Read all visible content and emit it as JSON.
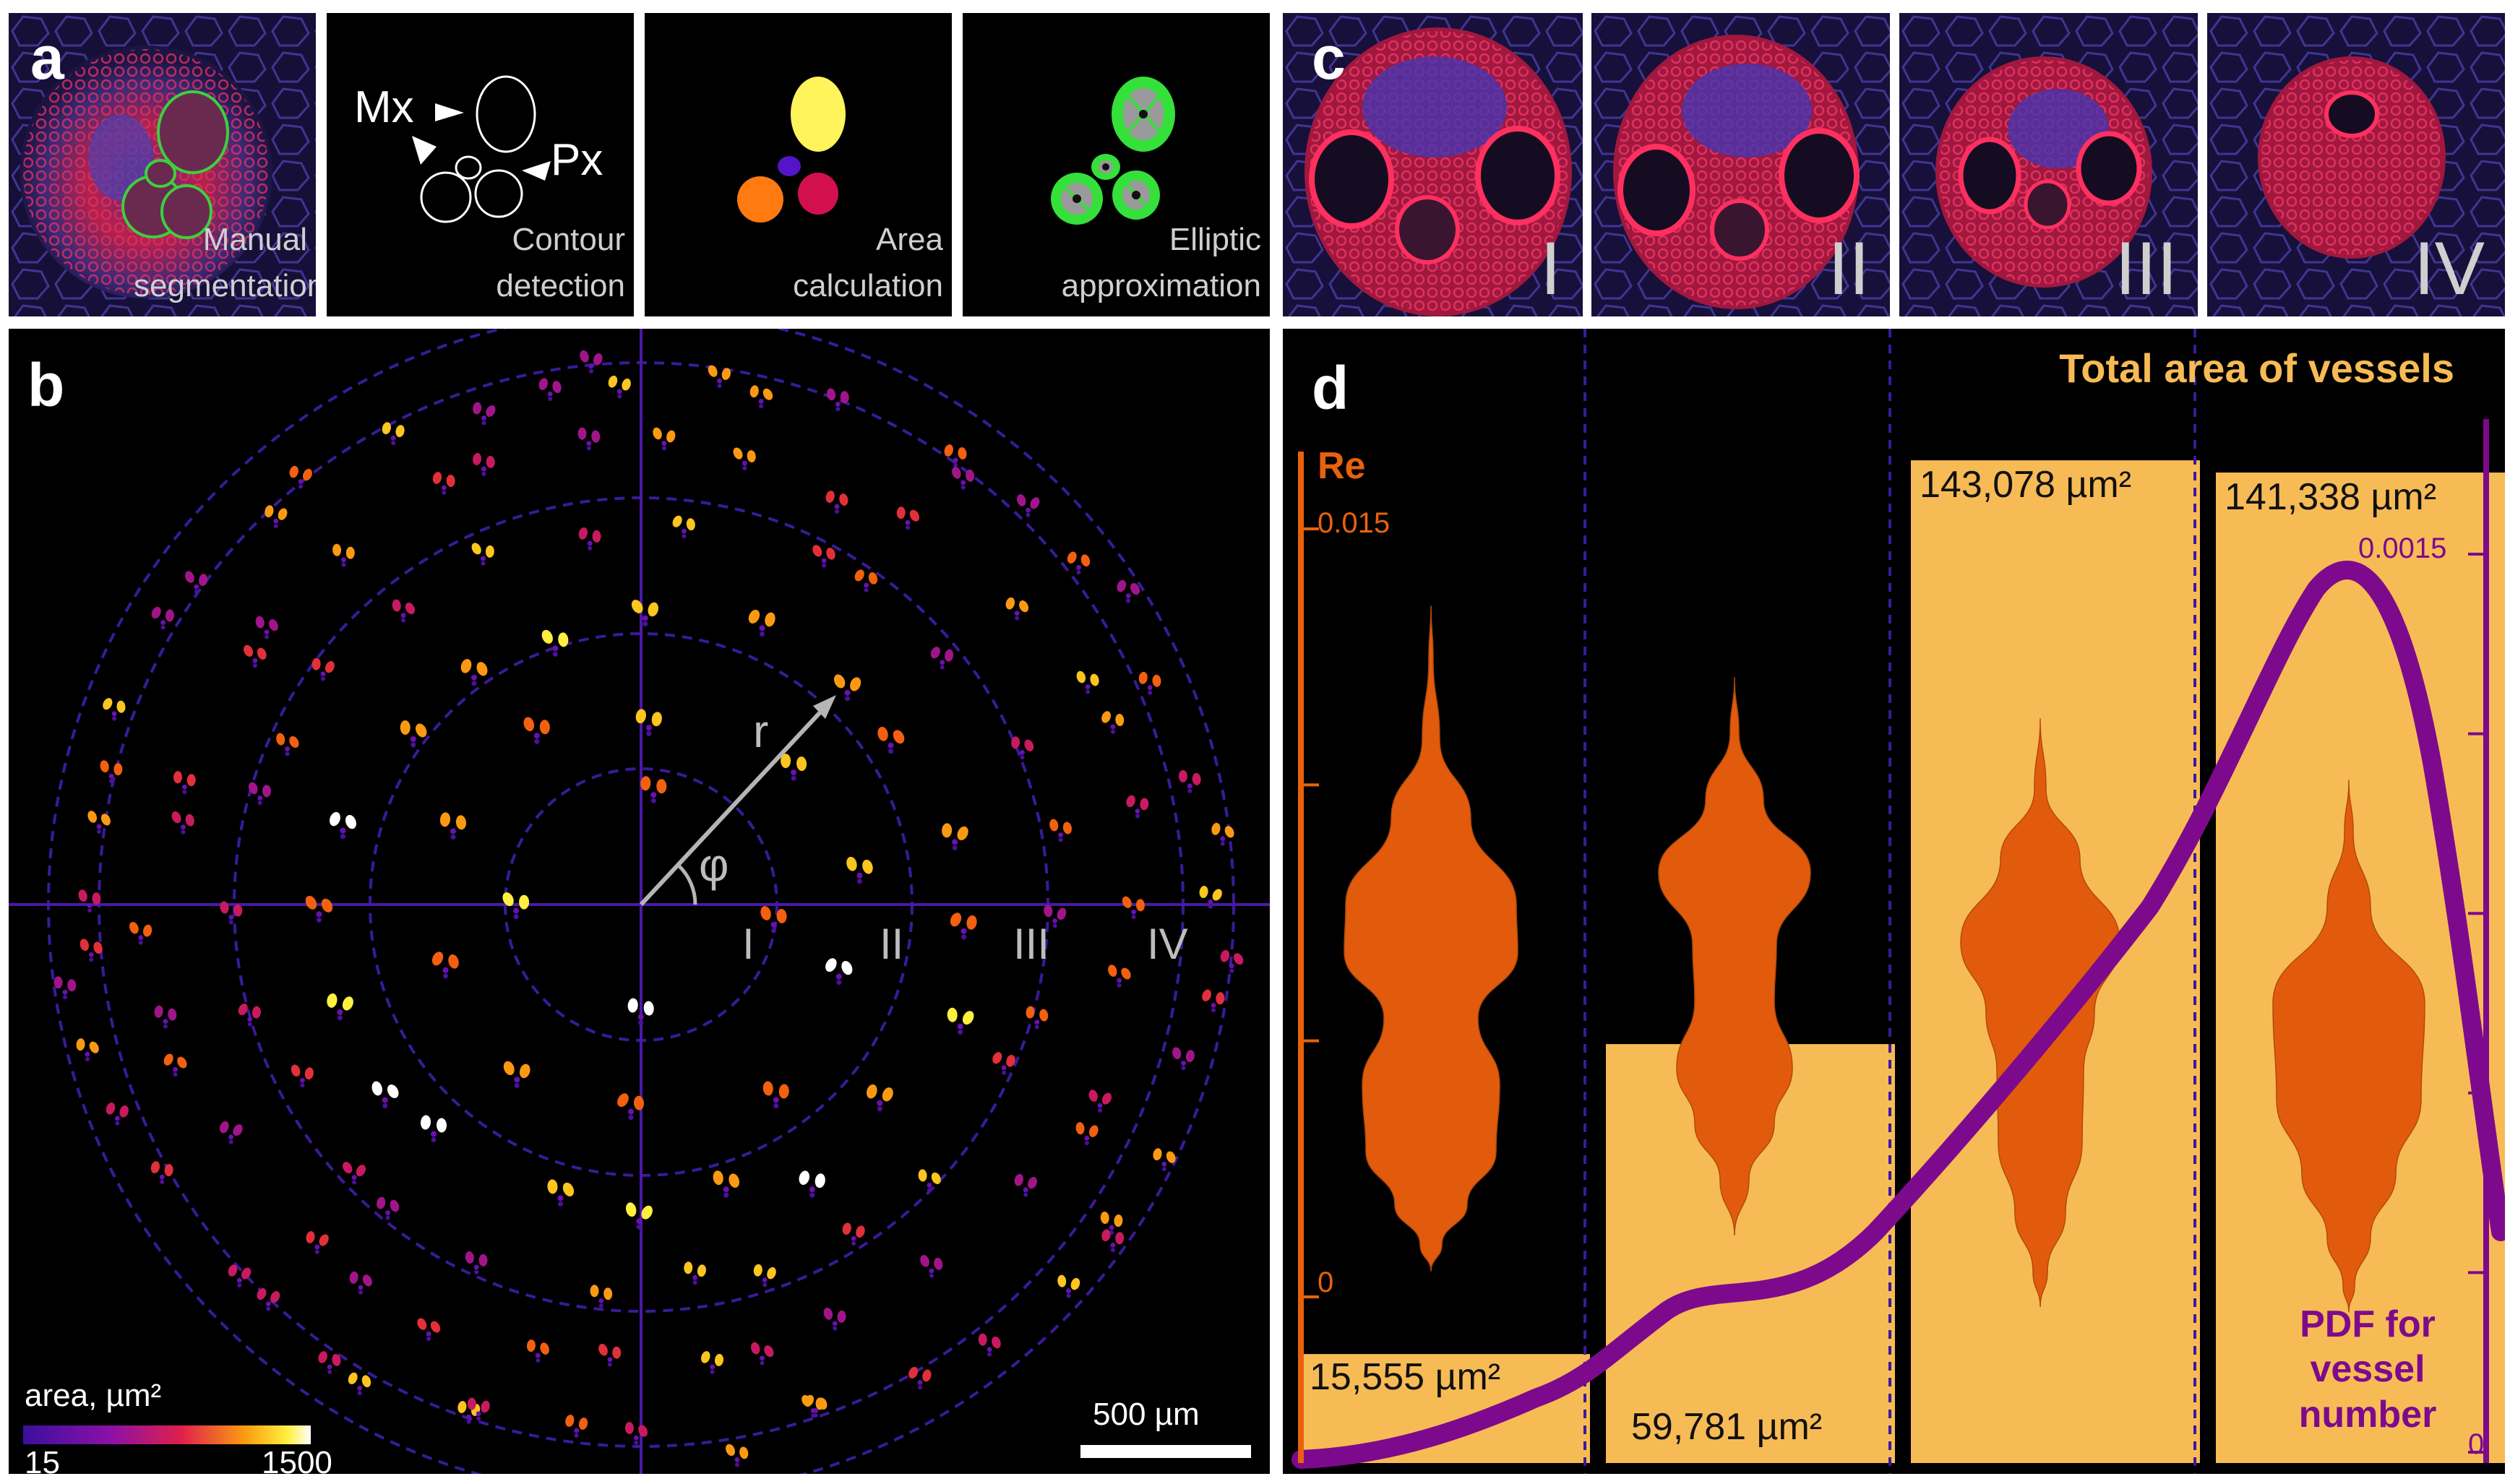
{
  "panel_a": {
    "label": "a",
    "captions": [
      "Manual segmentation",
      "Contour detection",
      "Area calculation",
      "Elliptic approximation"
    ],
    "contour_labels": {
      "mx": "Mx",
      "px": "Px"
    }
  },
  "panel_c": {
    "label": "c",
    "stages": [
      "I",
      "II",
      "III",
      "IV"
    ]
  },
  "panel_b": {
    "label": "b",
    "ring_labels": [
      "I",
      "II",
      "III",
      "IV"
    ],
    "radius_symbol": "r",
    "angle_symbol": "φ",
    "colorbar": {
      "title": "area, µm²",
      "min": "15",
      "max": "1500"
    },
    "scalebar": "500 µm"
  },
  "panel_d": {
    "label": "d",
    "title": "Total area of vessels",
    "left_axis": {
      "title": "Re",
      "ticks": [
        "0.015",
        "0"
      ],
      "color": "#e8620c"
    },
    "right_axis": {
      "ticks": [
        "0.0015",
        "0"
      ],
      "color": "#7d0a8c"
    },
    "pdf_label": "PDF for vessel number"
  },
  "chart_data": {
    "type": "bar",
    "title": "Total area of vessels",
    "categories": [
      "I",
      "II",
      "III",
      "IV"
    ],
    "series": [
      {
        "values": [
          15555,
          59781,
          143078,
          141338
        ],
        "labels": [
          "15,555 µm²",
          "59,781 µm²",
          "143,078 µm²",
          "141,338 µm²"
        ]
      }
    ],
    "bar_color": "#f7bb55",
    "violin_color": "#e25b0d",
    "pdf_color": "#7d0a8c",
    "ylabel": "Re",
    "ylim": [
      0,
      0.015
    ],
    "y2lim": [
      0,
      0.0015
    ]
  }
}
